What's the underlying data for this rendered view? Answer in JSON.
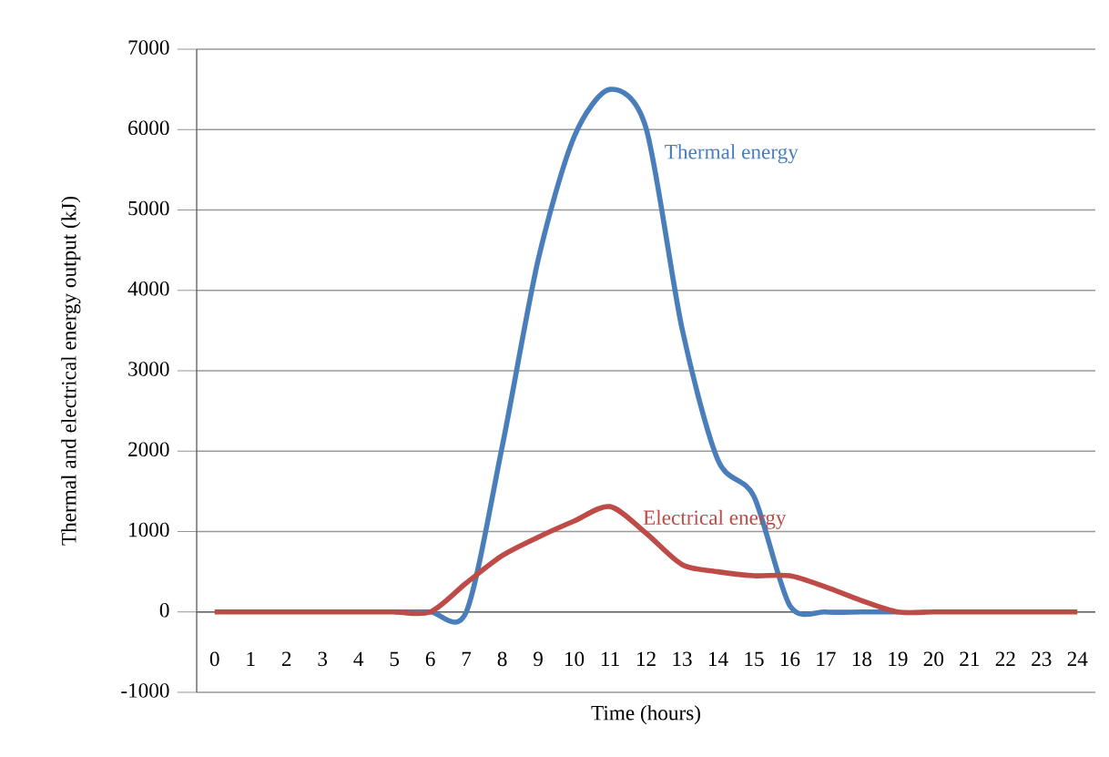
{
  "chart_data": {
    "type": "line",
    "xlabel": "Time (hours)",
    "ylabel": "Thermal and electrical energy output (kJ)",
    "categories": [
      "0",
      "1",
      "2",
      "3",
      "4",
      "5",
      "6",
      "7",
      "8",
      "9",
      "10",
      "11",
      "12",
      "13",
      "14",
      "15",
      "16",
      "17",
      "18",
      "19",
      "20",
      "21",
      "22",
      "23",
      "24"
    ],
    "series": [
      {
        "name": "Thermal energy",
        "color": "#4a7ebb",
        "values": [
          null,
          null,
          null,
          null,
          null,
          0,
          0,
          0,
          2060,
          4380,
          5910,
          6500,
          6020,
          3530,
          1890,
          1440,
          80,
          0,
          0,
          0,
          null,
          null,
          null,
          null,
          null
        ]
      },
      {
        "name": "Electrical energy",
        "color": "#be4b48",
        "values": [
          0,
          0,
          0,
          0,
          0,
          0,
          0,
          360,
          700,
          930,
          1130,
          1310,
          980,
          590,
          500,
          450,
          450,
          310,
          140,
          0,
          0,
          0,
          0,
          0,
          0
        ]
      }
    ],
    "ylim": [
      -1000,
      7000
    ],
    "yticks": [
      -1000,
      0,
      1000,
      2000,
      3000,
      4000,
      5000,
      6000,
      7000
    ],
    "grid": "y",
    "legend": false,
    "marker": "none",
    "line_style": "solid"
  }
}
